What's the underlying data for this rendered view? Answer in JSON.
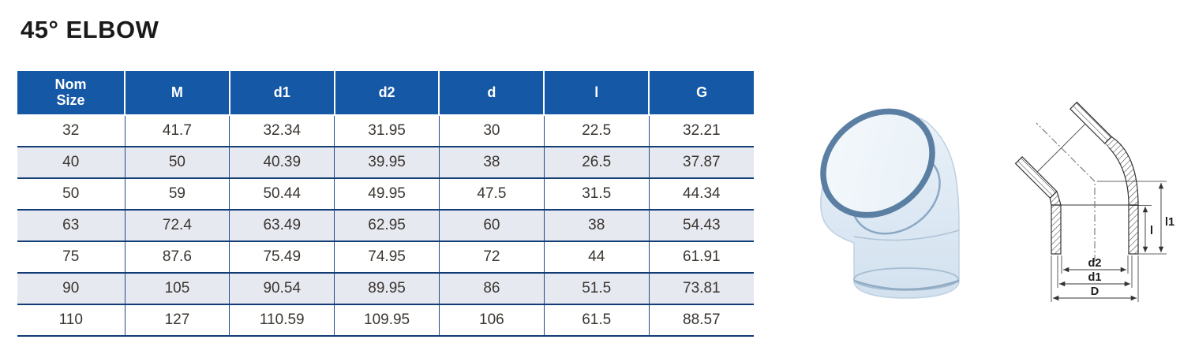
{
  "page": {
    "title": "45° ELBOW"
  },
  "table": {
    "columns": [
      "Nom Size",
      "M",
      "d1",
      "d2",
      "d",
      "l",
      "G"
    ],
    "rows": [
      [
        "32",
        "41.7",
        "32.34",
        "31.95",
        "30",
        "22.5",
        "32.21"
      ],
      [
        "40",
        "50",
        "40.39",
        "39.95",
        "38",
        "26.5",
        "37.87"
      ],
      [
        "50",
        "59",
        "50.44",
        "49.95",
        "47.5",
        "31.5",
        "44.34"
      ],
      [
        "63",
        "72.4",
        "63.49",
        "62.95",
        "60",
        "38",
        "54.43"
      ],
      [
        "75",
        "87.6",
        "75.49",
        "74.95",
        "72",
        "44",
        "61.91"
      ],
      [
        "90",
        "105",
        "90.54",
        "89.95",
        "86",
        "51.5",
        "73.81"
      ],
      [
        "110",
        "127",
        "110.59",
        "109.95",
        "106",
        "61.5",
        "88.57"
      ]
    ]
  },
  "diagram": {
    "labels": {
      "l1": "l1",
      "l": "l",
      "d2": "d2",
      "d1": "d1",
      "D": "D"
    }
  },
  "images": {
    "product_photo": "transparent-45-degree-elbow-photo",
    "dimension_drawing": "45-degree-elbow-section-drawing"
  },
  "colors": {
    "header_bg": "#1558a6",
    "header_text": "#ffffff",
    "row_alt": "#e7e9f1",
    "grid_dark": "#123c74",
    "grid_col": "#1c4a8a",
    "cell_text": "#3a3530",
    "photo_rim": "#5b7fa3"
  }
}
